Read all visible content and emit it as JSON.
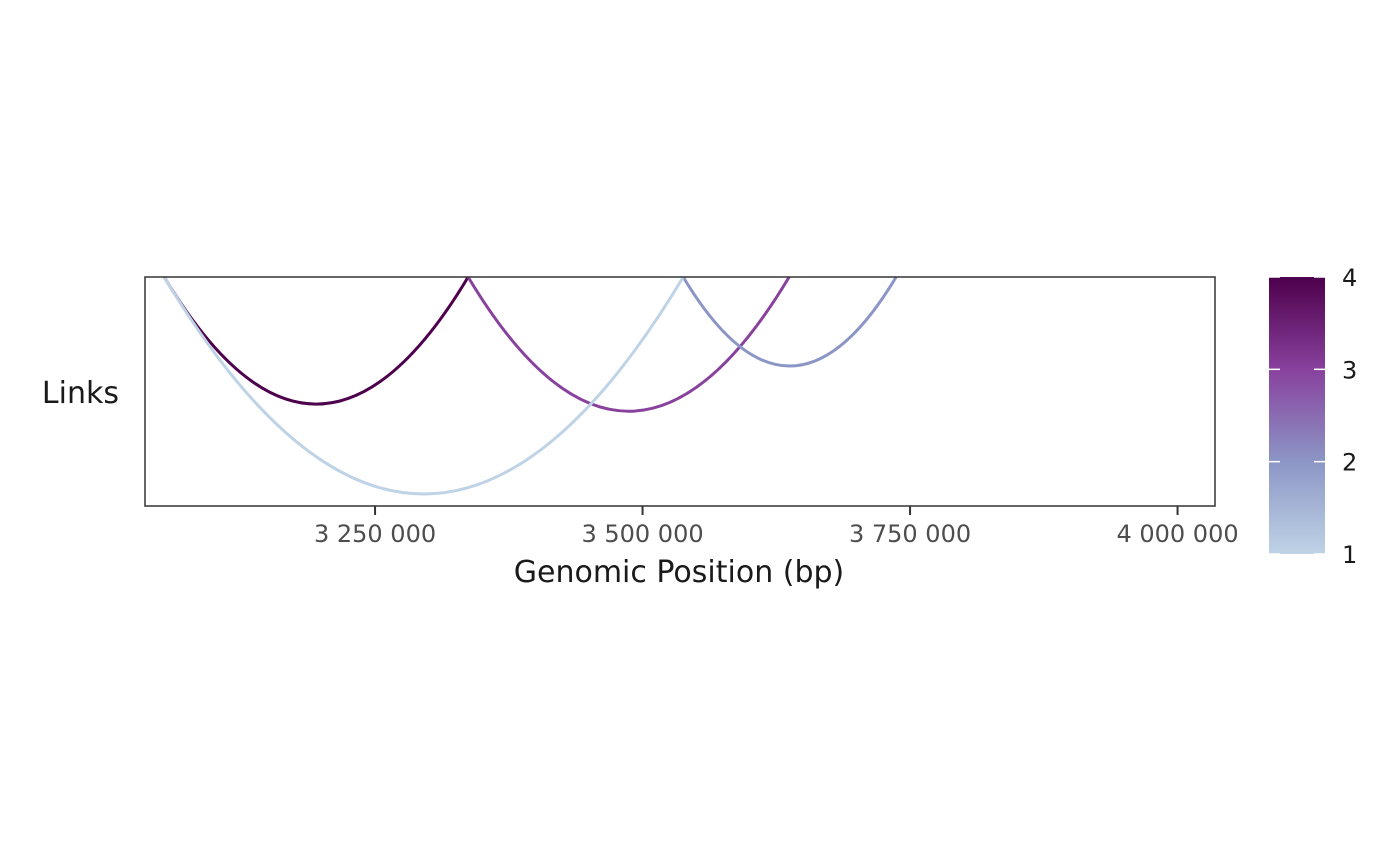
{
  "chart_data": {
    "type": "arc",
    "track_label": "Links",
    "xlabel": "Genomic Position (bp)",
    "xlim": [
      3035000,
      4035000
    ],
    "x_ticks": [
      {
        "value": 3250000,
        "label": "3 250 000"
      },
      {
        "value": 3500000,
        "label": "3 500 000"
      },
      {
        "value": 3750000,
        "label": "3 750 000"
      },
      {
        "value": 4000000,
        "label": "4 000 000"
      }
    ],
    "links": [
      {
        "start": 3053000,
        "end": 3337000,
        "score": 4
      },
      {
        "start": 3337000,
        "end": 3637000,
        "score": 3
      },
      {
        "start": 3538000,
        "end": 3737000,
        "score": 2
      },
      {
        "start": 3053000,
        "end": 3538000,
        "score": 1
      }
    ],
    "colorbar": {
      "min": 1,
      "max": 4,
      "ticks": [
        "1",
        "2",
        "3",
        "4"
      ],
      "colors": [
        "#bfd3e6",
        "#8c96c6",
        "#88419d",
        "#4d004b"
      ]
    },
    "grid": false
  }
}
